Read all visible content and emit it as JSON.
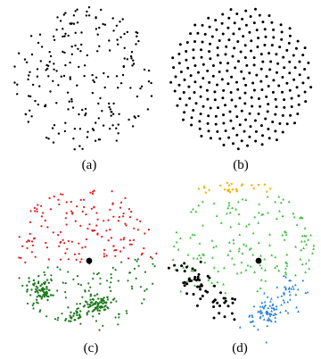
{
  "figure": {
    "panels": [
      {
        "id": "a",
        "caption": "(a)",
        "distribution": "random",
        "colors": [
          "#000000"
        ]
      },
      {
        "id": "b",
        "caption": "(b)",
        "distribution": "uniform",
        "colors": [
          "#000000"
        ]
      },
      {
        "id": "c",
        "caption": "(c)",
        "distribution": "two-cluster",
        "colors": [
          "#e01b1b",
          "#1f7a1f",
          "#000000"
        ]
      },
      {
        "id": "d",
        "caption": "(d)",
        "distribution": "four-cluster",
        "colors": [
          "#f2b400",
          "#3fbf3f",
          "#1f7fd6",
          "#000000"
        ]
      }
    ]
  }
}
